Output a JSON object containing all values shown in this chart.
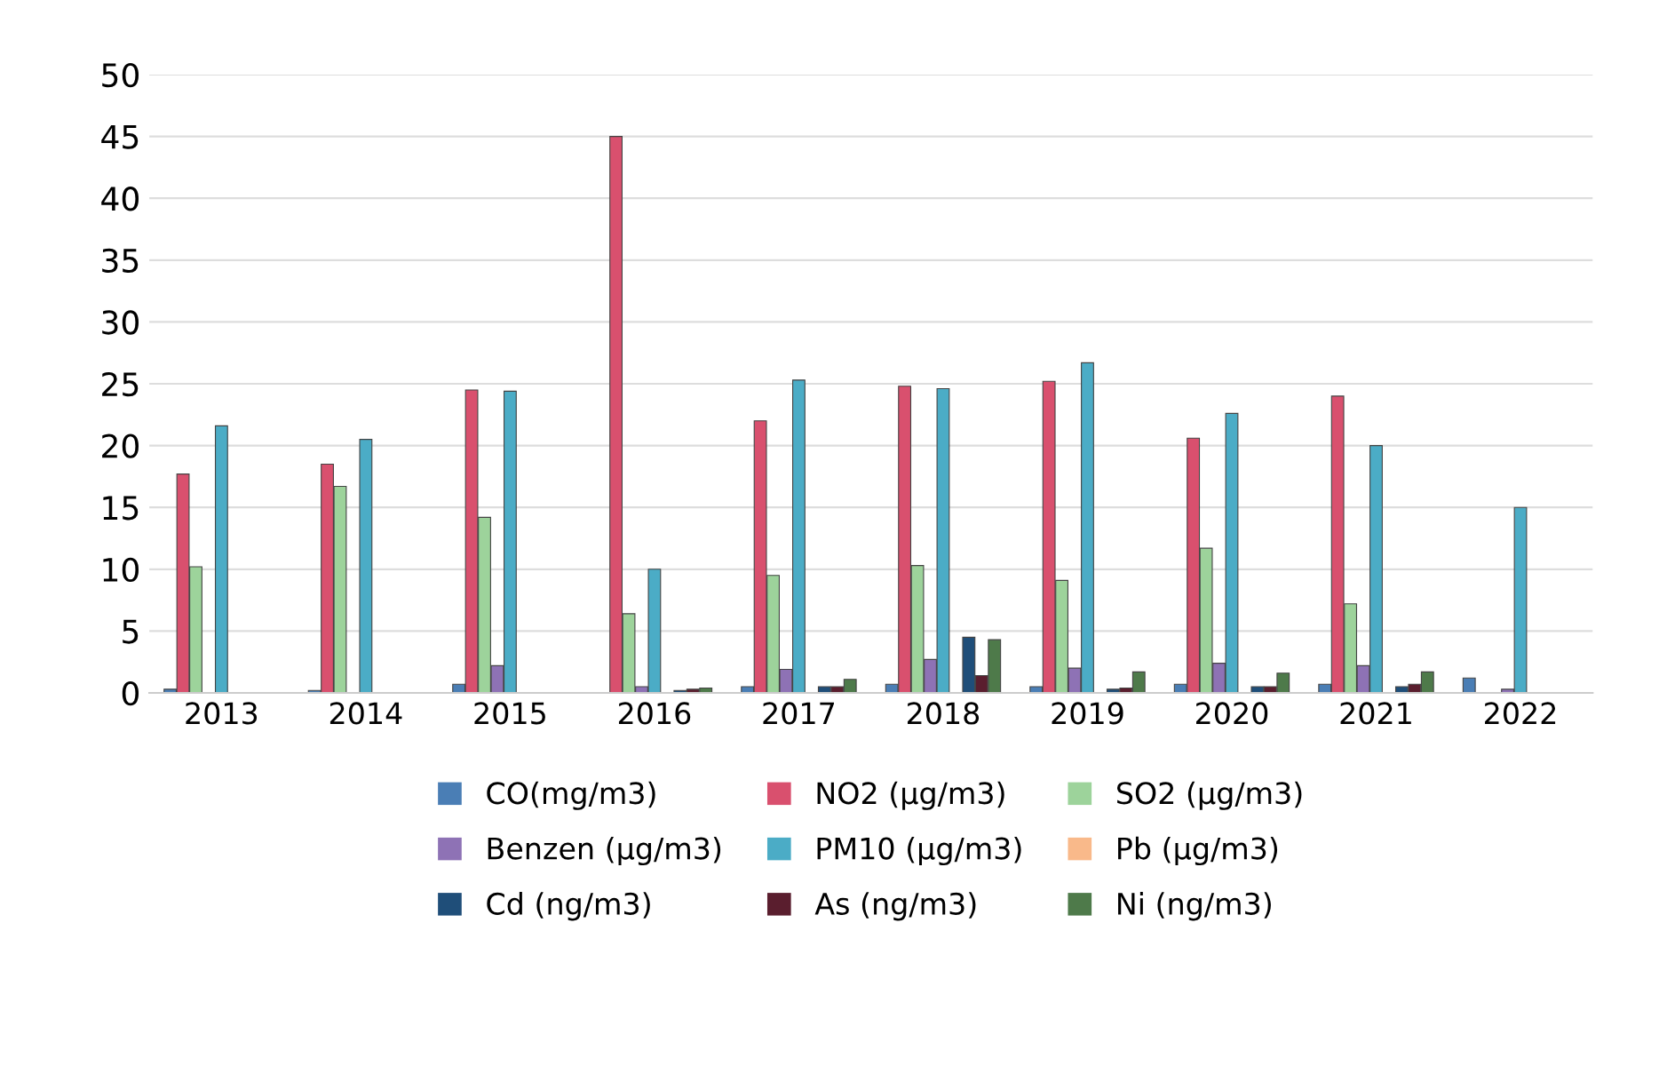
{
  "chart_data": {
    "type": "bar",
    "categories": [
      "2013",
      "2014",
      "2015",
      "2016",
      "2017",
      "2018",
      "2019",
      "2020",
      "2021",
      "2022"
    ],
    "series": [
      {
        "name": "CO(mg/m3)",
        "color": "#4a7eb5",
        "values": [
          0.3,
          0.2,
          0.7,
          null,
          0.5,
          0.7,
          0.5,
          0.7,
          0.7,
          1.2
        ]
      },
      {
        "name": "NO2 (µg/m3)",
        "color": "#d9506e",
        "values": [
          17.7,
          18.5,
          24.5,
          45,
          22,
          24.8,
          25.2,
          20.6,
          24,
          null
        ]
      },
      {
        "name": "SO2 (µg/m3)",
        "color": "#9dd39b",
        "values": [
          10.2,
          16.7,
          14.2,
          6.4,
          9.5,
          10.3,
          9.1,
          11.7,
          7.2,
          null
        ]
      },
      {
        "name": "Benzen (µg/m3)",
        "color": "#8e72b5",
        "values": [
          null,
          null,
          2.2,
          0.5,
          1.9,
          2.7,
          2.0,
          2.4,
          2.2,
          0.3
        ]
      },
      {
        "name": "PM10 (µg/m3)",
        "color": "#4bacc6",
        "values": [
          21.6,
          20.5,
          24.4,
          10,
          25.3,
          24.6,
          26.7,
          22.6,
          20,
          15
        ]
      },
      {
        "name": "Pb (µg/m3)",
        "color": "#f9b98a",
        "values": [
          null,
          null,
          null,
          null,
          null,
          null,
          null,
          null,
          null,
          null
        ]
      },
      {
        "name": "Cd (ng/m3)",
        "color": "#1f4e79",
        "values": [
          null,
          null,
          null,
          0.2,
          0.5,
          4.5,
          0.3,
          0.5,
          0.5,
          null
        ]
      },
      {
        "name": "As (ng/m3)",
        "color": "#5a1e2e",
        "values": [
          null,
          null,
          null,
          0.3,
          0.5,
          1.4,
          0.4,
          0.5,
          0.7,
          null
        ]
      },
      {
        "name": "Ni (ng/m3)",
        "color": "#4e7a4a",
        "values": [
          null,
          null,
          null,
          0.4,
          1.1,
          4.3,
          1.7,
          1.6,
          1.7,
          null
        ]
      }
    ],
    "ylim": [
      0,
      50
    ],
    "yticks": [
      0,
      5,
      10,
      15,
      20,
      25,
      30,
      35,
      40,
      45,
      50
    ],
    "grid": "y",
    "legend": "bottom"
  }
}
